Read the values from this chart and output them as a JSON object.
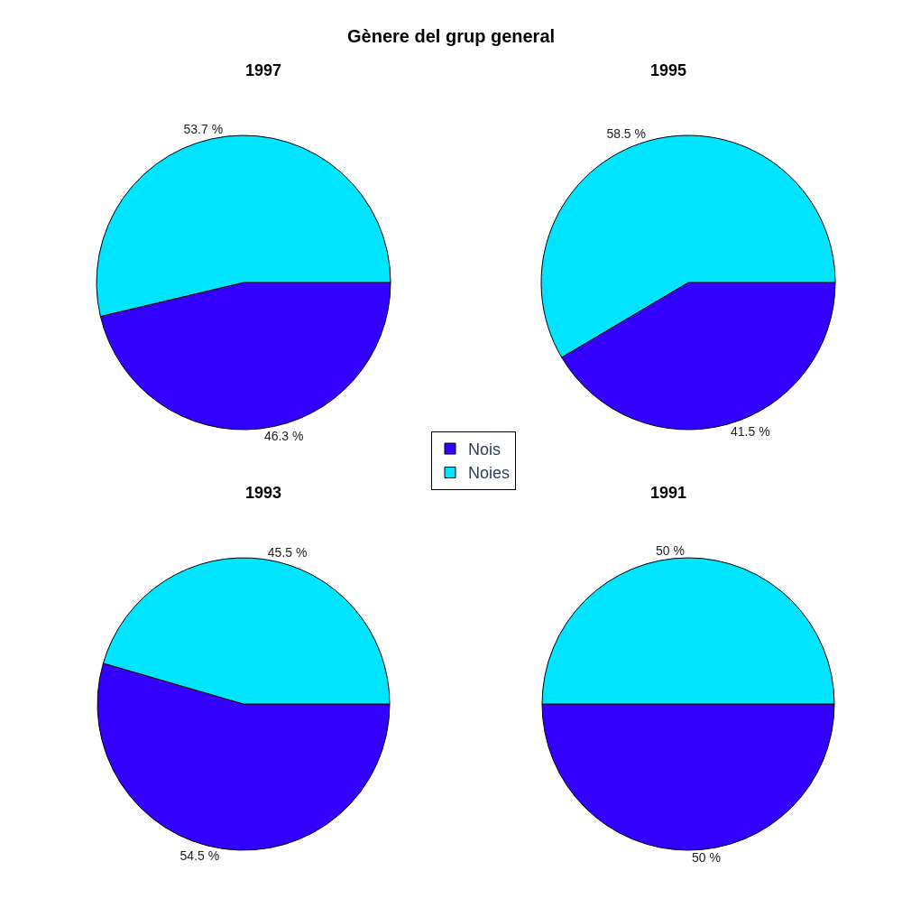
{
  "chart_data": [
    {
      "type": "other",
      "title": "Gènere del grup general"
    },
    {
      "type": "pie",
      "title": "1997",
      "categories": [
        "Nois",
        "Noies"
      ],
      "values": [
        46.3,
        53.7
      ],
      "value_labels": [
        "46.3 %",
        "53.7 %"
      ],
      "colors": [
        "#3300ff",
        "#00e5ff"
      ],
      "legend": "center"
    },
    {
      "type": "pie",
      "title": "1995",
      "categories": [
        null,
        null
      ],
      "values": [
        41.5,
        58.5
      ],
      "value_labels": [
        "41.5 %",
        "58.5 %"
      ],
      "colors": [
        "#3300ff",
        "#00e5ff"
      ]
    },
    {
      "type": "pie",
      "title": "1993",
      "categories": [
        null,
        null
      ],
      "values": [
        54.5,
        45.5
      ],
      "value_labels": [
        "54.5 %",
        "45.5 %"
      ],
      "colors": [
        "#3300ff",
        "#00e5ff"
      ]
    },
    {
      "type": "pie",
      "title": "1991",
      "categories": [
        null,
        null
      ],
      "values": [
        50,
        50
      ],
      "value_labels": [
        "50 %",
        "50 %"
      ],
      "colors": [
        "#3300ff",
        "#00e5ff"
      ]
    }
  ]
}
